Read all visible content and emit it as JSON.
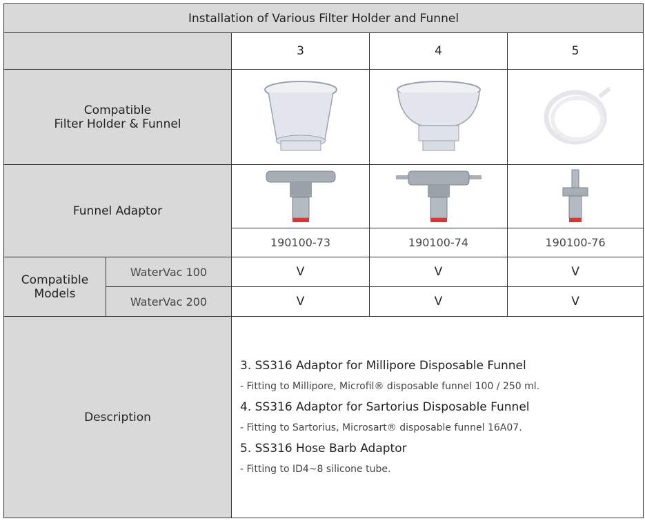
{
  "table": {
    "title": "Installation of Various Filter Holder and Funnel",
    "column_headers": [
      "3",
      "4",
      "5"
    ],
    "compatible_label": [
      "Compatible",
      "Filter Holder & Funnel"
    ],
    "funnel_adaptor_label": "Funnel Adaptor",
    "part_numbers": [
      "190100-73",
      "190100-74",
      "190100-76"
    ],
    "models_label": [
      "Compatible",
      "Models"
    ],
    "models": [
      {
        "name": "WaterVac 100",
        "marks": [
          "V",
          "V",
          "V"
        ]
      },
      {
        "name": "WaterVac 200",
        "marks": [
          "V",
          "V",
          "V"
        ]
      }
    ],
    "description_label": "Description",
    "description": [
      {
        "heading": "3. SS316 Adaptor for Millipore Disposable Funnel",
        "detail": "- Fitting to Millipore, Microfil® disposable funnel 100 / 250 ml."
      },
      {
        "heading": "4. SS316 Adaptor for Sartorius Disposable Funnel",
        "detail": "- Fitting to Sartorius, Microsart® disposable funnel 16A07."
      },
      {
        "heading": "5. SS316 Hose Barb Adaptor",
        "detail": "- Fitting to ID4~8 silicone tube."
      }
    ]
  }
}
